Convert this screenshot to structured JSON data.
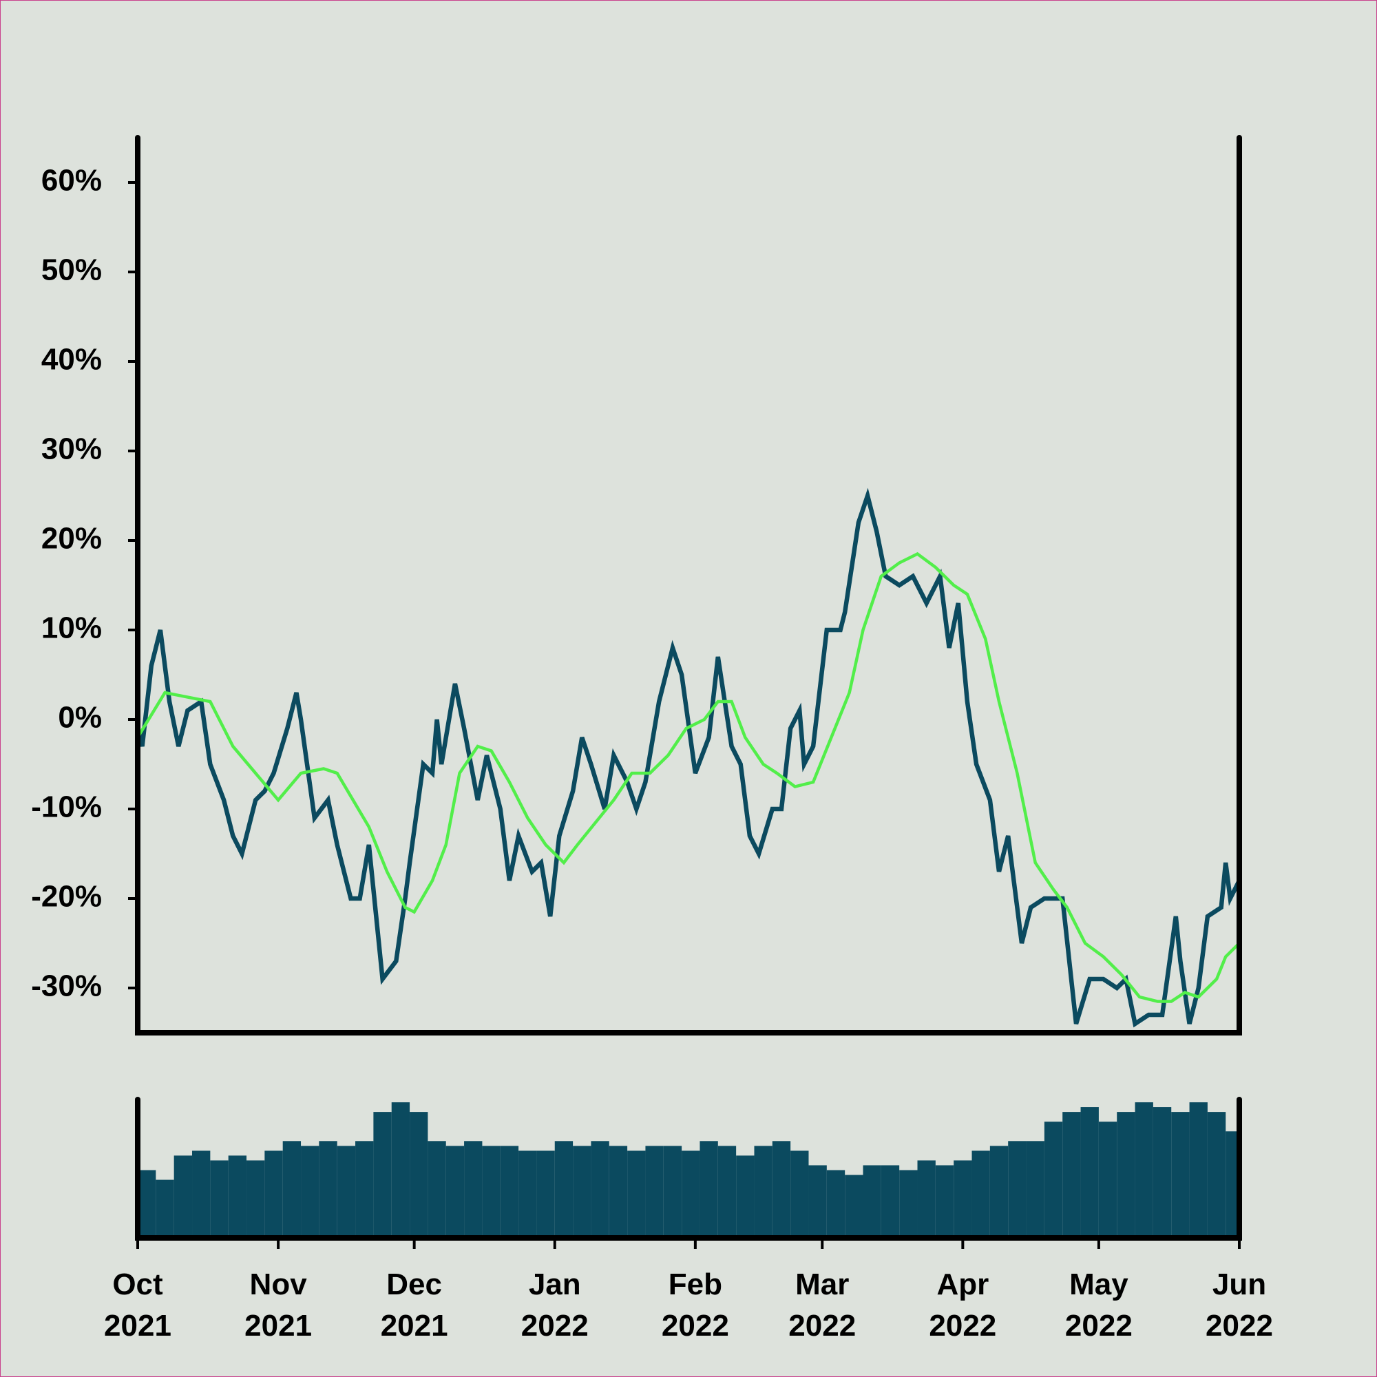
{
  "chart_data": [
    {
      "type": "line",
      "xlim": [
        "2021-10-01",
        "2022-06-01"
      ],
      "ylim": [
        -35,
        65
      ],
      "yticks": [
        {
          "value": -30,
          "label": "-30%"
        },
        {
          "value": -20,
          "label": "-20%"
        },
        {
          "value": -10,
          "label": "-10%"
        },
        {
          "value": 0,
          "label": "0%"
        },
        {
          "value": 10,
          "label": "10%"
        },
        {
          "value": 20,
          "label": "20%"
        },
        {
          "value": 30,
          "label": "30%"
        },
        {
          "value": 40,
          "label": "40%"
        },
        {
          "value": 50,
          "label": "50%"
        },
        {
          "value": 60,
          "label": "60%"
        }
      ],
      "series": [
        {
          "color": "#0b4a5f",
          "x": [
            "2021-10-01",
            "2021-10-02",
            "2021-10-04",
            "2021-10-06",
            "2021-10-08",
            "2021-10-10",
            "2021-10-12",
            "2021-10-15",
            "2021-10-17",
            "2021-10-20",
            "2021-10-22",
            "2021-10-24",
            "2021-10-27",
            "2021-10-29",
            "2021-10-31",
            "2021-11-03",
            "2021-11-05",
            "2021-11-06",
            "2021-11-09",
            "2021-11-12",
            "2021-11-14",
            "2021-11-17",
            "2021-11-19",
            "2021-11-21",
            "2021-11-23",
            "2021-11-24",
            "2021-11-27",
            "2021-11-29",
            "2021-11-30",
            "2021-12-03",
            "2021-12-05",
            "2021-12-06",
            "2021-12-07",
            "2021-12-10",
            "2021-12-12",
            "2021-12-15",
            "2021-12-17",
            "2021-12-20",
            "2021-12-22",
            "2021-12-24",
            "2021-12-27",
            "2021-12-29",
            "2021-12-31",
            "2022-01-02",
            "2022-01-05",
            "2022-01-07",
            "2022-01-09",
            "2022-01-12",
            "2022-01-14",
            "2022-01-17",
            "2022-01-19",
            "2022-01-21",
            "2022-01-24",
            "2022-01-27",
            "2022-01-29",
            "2022-02-01",
            "2022-02-04",
            "2022-02-06",
            "2022-02-09",
            "2022-02-11",
            "2022-02-13",
            "2022-02-15",
            "2022-02-18",
            "2022-02-20",
            "2022-02-22",
            "2022-02-24",
            "2022-02-25",
            "2022-02-27",
            "2022-03-02",
            "2022-03-05",
            "2022-03-06",
            "2022-03-09",
            "2022-03-11",
            "2022-03-13",
            "2022-03-15",
            "2022-03-18",
            "2022-03-21",
            "2022-03-24",
            "2022-03-27",
            "2022-03-29",
            "2022-03-31",
            "2022-04-02",
            "2022-04-04",
            "2022-04-07",
            "2022-04-09",
            "2022-04-11",
            "2022-04-14",
            "2022-04-16",
            "2022-04-19",
            "2022-04-23",
            "2022-04-26",
            "2022-04-29",
            "2022-05-02",
            "2022-05-05",
            "2022-05-07",
            "2022-05-09",
            "2022-05-12",
            "2022-05-15",
            "2022-05-18",
            "2022-05-19",
            "2022-05-21",
            "2022-05-23",
            "2022-05-25",
            "2022-05-28",
            "2022-05-29",
            "2022-05-30",
            "2022-06-01"
          ],
          "values": [
            -1,
            -3,
            6,
            10,
            2,
            -3,
            1,
            2,
            -5,
            -9,
            -13,
            -15,
            -9,
            -8,
            -6,
            -1,
            3,
            0,
            -11,
            -9,
            -14,
            -20,
            -20,
            -14,
            -24,
            -29,
            -27,
            -20,
            -16,
            -5,
            -6,
            0,
            -5,
            4,
            -1,
            -9,
            -4,
            -10,
            -18,
            -13,
            -17,
            -16,
            -22,
            -13,
            -8,
            -2,
            -5,
            -10,
            -4,
            -7,
            -10,
            -7,
            2,
            8,
            5,
            -6,
            -2,
            7,
            -3,
            -5,
            -13,
            -15,
            -10,
            -10,
            -1,
            1,
            -5,
            -3,
            10,
            10,
            12,
            22,
            25,
            21,
            16,
            15,
            16,
            13,
            16,
            8,
            13,
            2,
            -5,
            -9,
            -17,
            -13,
            -25,
            -21,
            -20,
            -20,
            -34,
            -29,
            -29,
            -30,
            -29,
            -34,
            -33,
            -33,
            -22,
            -27,
            -34,
            -30,
            -22,
            -21,
            -16,
            -20,
            -18
          ]
        },
        {
          "color": "#52ee4a",
          "x": [
            "2021-10-01",
            "2021-10-07",
            "2021-10-17",
            "2021-10-22",
            "2021-10-27",
            "2021-11-01",
            "2021-11-06",
            "2021-11-11",
            "2021-11-14",
            "2021-11-21",
            "2021-11-25",
            "2021-11-29",
            "2021-12-01",
            "2021-12-05",
            "2021-12-08",
            "2021-12-11",
            "2021-12-15",
            "2021-12-18",
            "2021-12-22",
            "2021-12-26",
            "2021-12-30",
            "2022-01-03",
            "2022-01-06",
            "2022-01-14",
            "2022-01-18",
            "2022-01-22",
            "2022-01-26",
            "2022-01-30",
            "2022-02-03",
            "2022-02-06",
            "2022-02-09",
            "2022-02-12",
            "2022-02-16",
            "2022-02-19",
            "2022-02-23",
            "2022-02-27",
            "2022-03-03",
            "2022-03-07",
            "2022-03-10",
            "2022-03-14",
            "2022-03-18",
            "2022-03-22",
            "2022-03-26",
            "2022-03-30",
            "2022-04-02",
            "2022-04-06",
            "2022-04-09",
            "2022-04-13",
            "2022-04-17",
            "2022-04-21",
            "2022-04-24",
            "2022-04-28",
            "2022-05-02",
            "2022-05-06",
            "2022-05-10",
            "2022-05-14",
            "2022-05-17",
            "2022-05-20",
            "2022-05-23",
            "2022-05-27",
            "2022-05-29",
            "2022-06-01"
          ],
          "values": [
            -2,
            3,
            2,
            -3,
            -6,
            -9,
            -6,
            -5.5,
            -6,
            -12,
            -17,
            -21,
            -21.5,
            -18,
            -14,
            -6,
            -3,
            -3.5,
            -7,
            -11,
            -14,
            -16,
            -14,
            -9,
            -6,
            -6,
            -4,
            -1,
            0,
            2,
            2,
            -2,
            -5,
            -6,
            -7.5,
            -7,
            -2,
            3,
            10,
            16,
            17.5,
            18.5,
            17,
            15,
            14,
            9,
            2,
            -6,
            -16,
            -19,
            -21,
            -25,
            -26.5,
            -28.5,
            -31,
            -31.5,
            -31.5,
            -30.5,
            -31,
            -29,
            -26.5,
            -25
          ]
        }
      ]
    },
    {
      "type": "bar",
      "color": "#0b4a5f",
      "xlim": [
        "2021-10-01",
        "2022-06-01"
      ],
      "xticks": [
        {
          "value": "2021-10-01",
          "label": "Oct\n2021"
        },
        {
          "value": "2021-11-01",
          "label": "Nov\n2021"
        },
        {
          "value": "2021-12-01",
          "label": "Dec\n2021"
        },
        {
          "value": "2022-01-01",
          "label": "Jan\n2022"
        },
        {
          "value": "2022-02-01",
          "label": "Feb\n2022"
        },
        {
          "value": "2022-03-01",
          "label": "Mar\n2022"
        },
        {
          "value": "2022-04-01",
          "label": "Apr\n2022"
        },
        {
          "value": "2022-05-01",
          "label": "May\n2022"
        },
        {
          "value": "2022-06-01",
          "label": "Jun\n2022"
        }
      ],
      "x": [
        "2021-10-01",
        "2021-10-05",
        "2021-10-09",
        "2021-10-13",
        "2021-10-17",
        "2021-10-21",
        "2021-10-25",
        "2021-10-29",
        "2021-11-02",
        "2021-11-06",
        "2021-11-10",
        "2021-11-14",
        "2021-11-18",
        "2021-11-22",
        "2021-11-26",
        "2021-11-30",
        "2021-12-04",
        "2021-12-08",
        "2021-12-12",
        "2021-12-16",
        "2021-12-20",
        "2021-12-24",
        "2021-12-28",
        "2022-01-01",
        "2022-01-05",
        "2022-01-09",
        "2022-01-13",
        "2022-01-17",
        "2022-01-21",
        "2022-01-25",
        "2022-01-29",
        "2022-02-02",
        "2022-02-06",
        "2022-02-10",
        "2022-02-14",
        "2022-02-18",
        "2022-02-22",
        "2022-02-26",
        "2022-03-02",
        "2022-03-06",
        "2022-03-10",
        "2022-03-14",
        "2022-03-18",
        "2022-03-22",
        "2022-03-26",
        "2022-03-30",
        "2022-04-03",
        "2022-04-07",
        "2022-04-11",
        "2022-04-15",
        "2022-04-19",
        "2022-04-23",
        "2022-04-27",
        "2022-05-01",
        "2022-05-05",
        "2022-05-09",
        "2022-05-13",
        "2022-05-17",
        "2022-05-21",
        "2022-05-25",
        "2022-05-29"
      ],
      "values": [
        70,
        60,
        85,
        90,
        80,
        85,
        80,
        90,
        100,
        95,
        100,
        95,
        100,
        130,
        140,
        130,
        100,
        95,
        100,
        95,
        95,
        90,
        90,
        100,
        95,
        100,
        95,
        90,
        95,
        95,
        90,
        100,
        95,
        85,
        95,
        100,
        90,
        75,
        70,
        65,
        75,
        75,
        70,
        80,
        75,
        80,
        90,
        95,
        100,
        100,
        120,
        130,
        135,
        120,
        130,
        140,
        135,
        130,
        140,
        130,
        110
      ]
    }
  ]
}
